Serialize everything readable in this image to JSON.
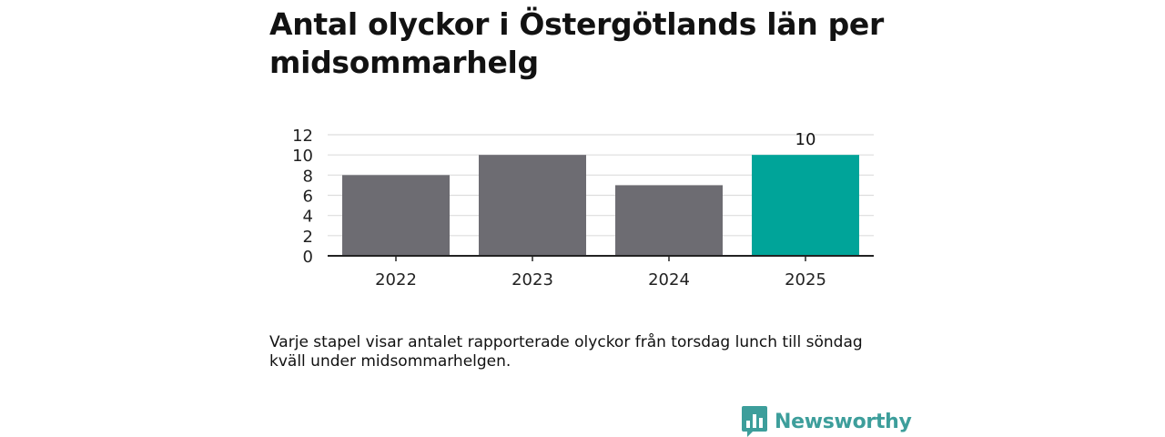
{
  "chart_data": {
    "type": "bar",
    "title": "Antal olyckor i Östergötlands län per midsommarhelg",
    "categories": [
      "2022",
      "2023",
      "2024",
      "2025"
    ],
    "values": [
      8,
      10,
      7,
      10
    ],
    "highlight_index": 3,
    "data_labels": [
      null,
      null,
      null,
      "10"
    ],
    "ylim": [
      0,
      12
    ],
    "yticks": [
      0,
      2,
      4,
      6,
      8,
      10,
      12
    ],
    "ytick_labels": [
      "0",
      "2",
      "4",
      "6",
      "8",
      "10",
      "12"
    ],
    "xlabel": "",
    "ylabel": "",
    "grid": true,
    "colors": {
      "bar": "#6d6c72",
      "highlight": "#00a499",
      "grid": "#dddddd",
      "axis": "#222222"
    }
  },
  "caption": "Varje stapel visar antalet rapporterade olyckor från torsdag lunch till söndag kväll under midsommarhelgen.",
  "brand": {
    "name": "Newsworthy",
    "icon": "newsworthy-logo-icon",
    "color": "#3d9e9b"
  }
}
